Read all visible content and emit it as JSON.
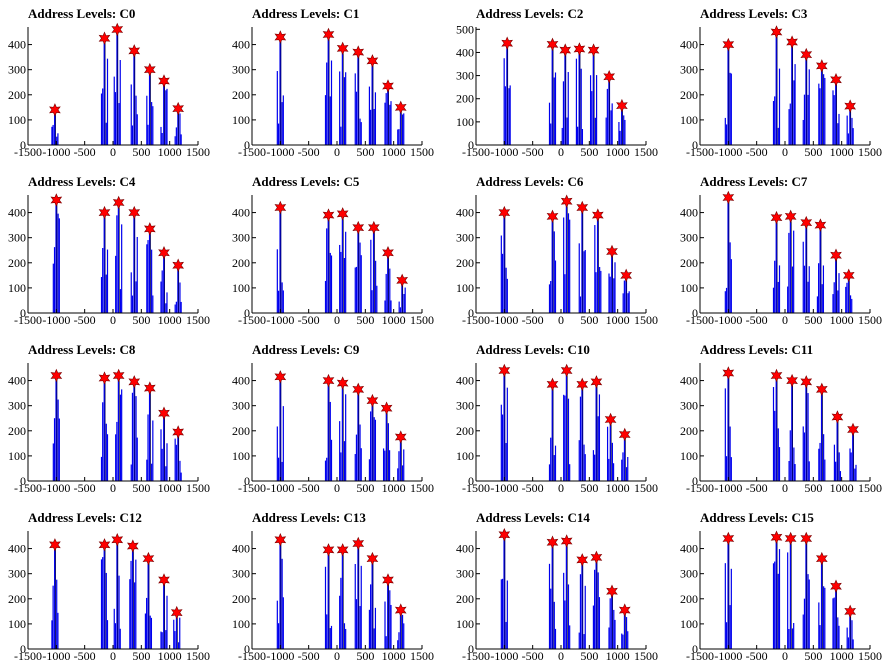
{
  "chart_data": [
    {
      "type": "histogram",
      "title": "Address Levels: C0",
      "xlim": [
        -1500,
        1500
      ],
      "ylim": [
        0,
        470
      ],
      "y_ticks": [
        0,
        100,
        200,
        300,
        400
      ],
      "x_ticks": [
        -1500,
        -1000,
        -500,
        0,
        500,
        1000,
        1500
      ],
      "peaks": [
        {
          "x": -1025,
          "y": 140
        },
        {
          "x": -150,
          "y": 425
        },
        {
          "x": 75,
          "y": 460
        },
        {
          "x": 375,
          "y": 375
        },
        {
          "x": 650,
          "y": 300
        },
        {
          "x": 900,
          "y": 255
        },
        {
          "x": 1150,
          "y": 145
        }
      ]
    },
    {
      "type": "histogram",
      "title": "Address Levels: C1",
      "xlim": [
        -1500,
        1500
      ],
      "ylim": [
        0,
        470
      ],
      "y_ticks": [
        0,
        100,
        200,
        300,
        400
      ],
      "x_ticks": [
        -1500,
        -1000,
        -500,
        0,
        500,
        1000,
        1500
      ],
      "peaks": [
        {
          "x": -1000,
          "y": 430
        },
        {
          "x": -150,
          "y": 440
        },
        {
          "x": 100,
          "y": 385
        },
        {
          "x": 375,
          "y": 370
        },
        {
          "x": 625,
          "y": 335
        },
        {
          "x": 900,
          "y": 235
        },
        {
          "x": 1125,
          "y": 150
        }
      ]
    },
    {
      "type": "histogram",
      "title": "Address Levels: C2",
      "xlim": [
        -1500,
        1500
      ],
      "ylim": [
        0,
        510
      ],
      "y_ticks": [
        0,
        100,
        200,
        300,
        400,
        500
      ],
      "x_ticks": [
        -1500,
        -1000,
        -500,
        0,
        500,
        1000,
        1500
      ],
      "peaks": [
        {
          "x": -950,
          "y": 440
        },
        {
          "x": -150,
          "y": 435
        },
        {
          "x": 75,
          "y": 410
        },
        {
          "x": 325,
          "y": 415
        },
        {
          "x": 575,
          "y": 410
        },
        {
          "x": 850,
          "y": 295
        },
        {
          "x": 1075,
          "y": 170
        }
      ]
    },
    {
      "type": "histogram",
      "title": "Address Levels: C3",
      "xlim": [
        -1500,
        1500
      ],
      "ylim": [
        0,
        470
      ],
      "y_ticks": [
        0,
        100,
        200,
        300,
        400
      ],
      "x_ticks": [
        -1500,
        -1000,
        -500,
        0,
        500,
        1000,
        1500
      ],
      "peaks": [
        {
          "x": -1000,
          "y": 400
        },
        {
          "x": -150,
          "y": 450
        },
        {
          "x": 125,
          "y": 410
        },
        {
          "x": 375,
          "y": 360
        },
        {
          "x": 650,
          "y": 315
        },
        {
          "x": 900,
          "y": 260
        },
        {
          "x": 1150,
          "y": 155
        }
      ]
    },
    {
      "type": "histogram",
      "title": "Address Levels: C4",
      "xlim": [
        -1500,
        1500
      ],
      "ylim": [
        0,
        470
      ],
      "y_ticks": [
        0,
        100,
        200,
        300,
        400
      ],
      "x_ticks": [
        -1500,
        -1000,
        -500,
        0,
        500,
        1000,
        1500
      ],
      "peaks": [
        {
          "x": -1000,
          "y": 450
        },
        {
          "x": -150,
          "y": 400
        },
        {
          "x": 100,
          "y": 440
        },
        {
          "x": 375,
          "y": 400
        },
        {
          "x": 650,
          "y": 335
        },
        {
          "x": 900,
          "y": 240
        },
        {
          "x": 1150,
          "y": 190
        }
      ]
    },
    {
      "type": "histogram",
      "title": "Address Levels: C5",
      "xlim": [
        -1500,
        1500
      ],
      "ylim": [
        0,
        470
      ],
      "y_ticks": [
        0,
        100,
        200,
        300,
        400
      ],
      "x_ticks": [
        -1500,
        -1000,
        -500,
        0,
        500,
        1000,
        1500
      ],
      "peaks": [
        {
          "x": -1000,
          "y": 420
        },
        {
          "x": -150,
          "y": 390
        },
        {
          "x": 100,
          "y": 395
        },
        {
          "x": 375,
          "y": 340
        },
        {
          "x": 650,
          "y": 340
        },
        {
          "x": 900,
          "y": 240
        },
        {
          "x": 1150,
          "y": 130
        }
      ]
    },
    {
      "type": "histogram",
      "title": "Address Levels: C6",
      "xlim": [
        -1500,
        1500
      ],
      "ylim": [
        0,
        470
      ],
      "y_ticks": [
        0,
        100,
        200,
        300,
        400
      ],
      "x_ticks": [
        -1500,
        -1000,
        -500,
        0,
        500,
        1000,
        1500
      ],
      "peaks": [
        {
          "x": -1000,
          "y": 400
        },
        {
          "x": -150,
          "y": 385
        },
        {
          "x": 100,
          "y": 445
        },
        {
          "x": 375,
          "y": 420
        },
        {
          "x": 650,
          "y": 390
        },
        {
          "x": 900,
          "y": 245
        },
        {
          "x": 1150,
          "y": 150
        }
      ]
    },
    {
      "type": "histogram",
      "title": "Address Levels: C7",
      "xlim": [
        -1500,
        1500
      ],
      "ylim": [
        0,
        470
      ],
      "y_ticks": [
        0,
        100,
        200,
        300,
        400
      ],
      "x_ticks": [
        -1500,
        -1000,
        -500,
        0,
        500,
        1000,
        1500
      ],
      "peaks": [
        {
          "x": -1000,
          "y": 460
        },
        {
          "x": -150,
          "y": 380
        },
        {
          "x": 100,
          "y": 385
        },
        {
          "x": 375,
          "y": 360
        },
        {
          "x": 625,
          "y": 350
        },
        {
          "x": 900,
          "y": 230
        },
        {
          "x": 1125,
          "y": 150
        }
      ]
    },
    {
      "type": "histogram",
      "title": "Address Levels: C8",
      "xlim": [
        -1500,
        1500
      ],
      "ylim": [
        0,
        470
      ],
      "y_ticks": [
        0,
        100,
        200,
        300,
        400
      ],
      "x_ticks": [
        -1500,
        -1000,
        -500,
        0,
        500,
        1000,
        1500
      ],
      "peaks": [
        {
          "x": -1000,
          "y": 420
        },
        {
          "x": -150,
          "y": 410
        },
        {
          "x": 100,
          "y": 420
        },
        {
          "x": 375,
          "y": 395
        },
        {
          "x": 650,
          "y": 370
        },
        {
          "x": 900,
          "y": 270
        },
        {
          "x": 1150,
          "y": 195
        }
      ]
    },
    {
      "type": "histogram",
      "title": "Address Levels: C9",
      "xlim": [
        -1500,
        1500
      ],
      "ylim": [
        0,
        470
      ],
      "y_ticks": [
        0,
        100,
        200,
        300,
        400
      ],
      "x_ticks": [
        -1500,
        -1000,
        -500,
        0,
        500,
        1000,
        1500
      ],
      "peaks": [
        {
          "x": -1000,
          "y": 415
        },
        {
          "x": -150,
          "y": 400
        },
        {
          "x": 100,
          "y": 390
        },
        {
          "x": 375,
          "y": 365
        },
        {
          "x": 625,
          "y": 320
        },
        {
          "x": 875,
          "y": 290
        },
        {
          "x": 1125,
          "y": 175
        }
      ]
    },
    {
      "type": "histogram",
      "title": "Address Levels: C10",
      "xlim": [
        -1500,
        1500
      ],
      "ylim": [
        0,
        470
      ],
      "y_ticks": [
        0,
        100,
        200,
        300,
        400
      ],
      "x_ticks": [
        -1500,
        -1000,
        -500,
        0,
        500,
        1000,
        1500
      ],
      "peaks": [
        {
          "x": -1000,
          "y": 440
        },
        {
          "x": -150,
          "y": 385
        },
        {
          "x": 100,
          "y": 440
        },
        {
          "x": 375,
          "y": 385
        },
        {
          "x": 625,
          "y": 395
        },
        {
          "x": 875,
          "y": 245
        },
        {
          "x": 1125,
          "y": 185
        }
      ]
    },
    {
      "type": "histogram",
      "title": "Address Levels: C11",
      "xlim": [
        -1500,
        1500
      ],
      "ylim": [
        0,
        470
      ],
      "y_ticks": [
        0,
        100,
        200,
        300,
        400
      ],
      "x_ticks": [
        -1500,
        -1000,
        -500,
        0,
        500,
        1000,
        1500
      ],
      "peaks": [
        {
          "x": -1000,
          "y": 430
        },
        {
          "x": -150,
          "y": 420
        },
        {
          "x": 125,
          "y": 400
        },
        {
          "x": 375,
          "y": 395
        },
        {
          "x": 650,
          "y": 365
        },
        {
          "x": 925,
          "y": 255
        },
        {
          "x": 1200,
          "y": 205
        }
      ]
    },
    {
      "type": "histogram",
      "title": "Address Levels: C12",
      "xlim": [
        -1500,
        1500
      ],
      "ylim": [
        0,
        470
      ],
      "y_ticks": [
        0,
        100,
        200,
        300,
        400
      ],
      "x_ticks": [
        -1500,
        -1000,
        -500,
        0,
        500,
        1000,
        1500
      ],
      "peaks": [
        {
          "x": -1025,
          "y": 415
        },
        {
          "x": -150,
          "y": 415
        },
        {
          "x": 75,
          "y": 435
        },
        {
          "x": 350,
          "y": 410
        },
        {
          "x": 625,
          "y": 360
        },
        {
          "x": 900,
          "y": 275
        },
        {
          "x": 1125,
          "y": 145
        }
      ]
    },
    {
      "type": "histogram",
      "title": "Address Levels: C13",
      "xlim": [
        -1500,
        1500
      ],
      "ylim": [
        0,
        470
      ],
      "y_ticks": [
        0,
        100,
        200,
        300,
        400
      ],
      "x_ticks": [
        -1500,
        -1000,
        -500,
        0,
        500,
        1000,
        1500
      ],
      "peaks": [
        {
          "x": -1000,
          "y": 435
        },
        {
          "x": -150,
          "y": 395
        },
        {
          "x": 100,
          "y": 395
        },
        {
          "x": 375,
          "y": 420
        },
        {
          "x": 625,
          "y": 360
        },
        {
          "x": 900,
          "y": 275
        },
        {
          "x": 1125,
          "y": 155
        }
      ]
    },
    {
      "type": "histogram",
      "title": "Address Levels: C14",
      "xlim": [
        -1500,
        1500
      ],
      "ylim": [
        0,
        470
      ],
      "y_ticks": [
        0,
        100,
        200,
        300,
        400
      ],
      "x_ticks": [
        -1500,
        -1000,
        -500,
        0,
        500,
        1000,
        1500
      ],
      "peaks": [
        {
          "x": -1000,
          "y": 455
        },
        {
          "x": -150,
          "y": 425
        },
        {
          "x": 100,
          "y": 430
        },
        {
          "x": 375,
          "y": 355
        },
        {
          "x": 625,
          "y": 365
        },
        {
          "x": 900,
          "y": 230
        },
        {
          "x": 1125,
          "y": 155
        }
      ]
    },
    {
      "type": "histogram",
      "title": "Address Levels: C15",
      "xlim": [
        -1500,
        1500
      ],
      "ylim": [
        0,
        470
      ],
      "y_ticks": [
        0,
        100,
        200,
        300,
        400
      ],
      "x_ticks": [
        -1500,
        -1000,
        -500,
        0,
        500,
        1000,
        1500
      ],
      "peaks": [
        {
          "x": -1000,
          "y": 440
        },
        {
          "x": -150,
          "y": 445
        },
        {
          "x": 100,
          "y": 440
        },
        {
          "x": 375,
          "y": 440
        },
        {
          "x": 650,
          "y": 360
        },
        {
          "x": 900,
          "y": 250
        },
        {
          "x": 1150,
          "y": 150
        }
      ]
    }
  ],
  "colors": {
    "bars": "#0000ee",
    "markers": "#ff0000",
    "marker_outline": "#7a0000",
    "axes": "#000000"
  }
}
